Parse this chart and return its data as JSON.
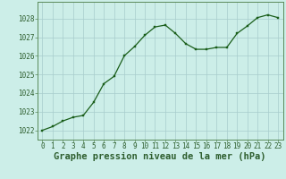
{
  "x": [
    0,
    1,
    2,
    3,
    4,
    5,
    6,
    7,
    8,
    9,
    10,
    11,
    12,
    13,
    14,
    15,
    16,
    17,
    18,
    19,
    20,
    21,
    22,
    23
  ],
  "y": [
    1022.0,
    1022.2,
    1022.5,
    1022.7,
    1022.8,
    1023.5,
    1024.5,
    1024.9,
    1026.0,
    1026.5,
    1027.1,
    1027.55,
    1027.65,
    1027.2,
    1026.65,
    1026.35,
    1026.35,
    1026.45,
    1026.45,
    1027.2,
    1027.6,
    1028.05,
    1028.2,
    1028.05
  ],
  "line_color": "#1a5e1a",
  "marker_color": "#1a5e1a",
  "bg_color": "#cceee8",
  "grid_color": "#a8cccc",
  "xlabel": "Graphe pression niveau de la mer (hPa)",
  "ylim": [
    1021.5,
    1028.9
  ],
  "xlim": [
    -0.5,
    23.5
  ],
  "yticks": [
    1022,
    1023,
    1024,
    1025,
    1026,
    1027,
    1028
  ],
  "xticks": [
    0,
    1,
    2,
    3,
    4,
    5,
    6,
    7,
    8,
    9,
    10,
    11,
    12,
    13,
    14,
    15,
    16,
    17,
    18,
    19,
    20,
    21,
    22,
    23
  ],
  "tick_label_fontsize": 5.5,
  "xlabel_fontsize": 7.5,
  "axis_color": "#2e5e2e",
  "spine_color": "#5a8a5a"
}
